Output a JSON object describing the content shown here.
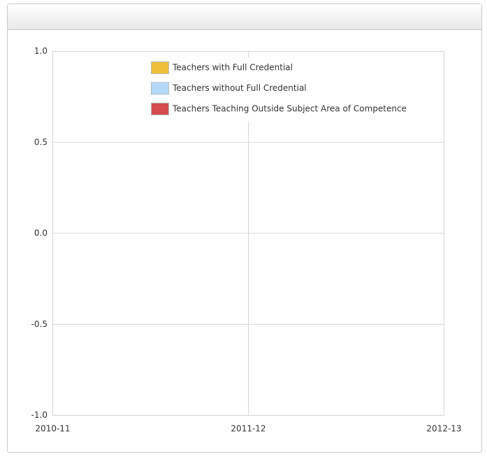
{
  "chart_data": {
    "type": "bar",
    "categories": [
      "2010-11",
      "2011-12",
      "2012-13"
    ],
    "series": [
      {
        "name": "Teachers with Full Credential",
        "color": "#eebf3a",
        "values": [
          null,
          null,
          null
        ]
      },
      {
        "name": "Teachers without Full Credential",
        "color": "#b3d9f7",
        "values": [
          null,
          null,
          null
        ]
      },
      {
        "name": "Teachers Teaching Outside Subject Area of Competence",
        "color": "#d64b4b",
        "values": [
          null,
          null,
          null
        ]
      }
    ],
    "ylim": [
      -1,
      1
    ],
    "yticks": [
      {
        "value": -1,
        "label": "-1.0"
      },
      -0.5,
      {
        "value": 0,
        "label": "0.0"
      },
      0.5,
      {
        "value": 1,
        "label": "1.0"
      }
    ],
    "grid": true,
    "legend": "top"
  }
}
